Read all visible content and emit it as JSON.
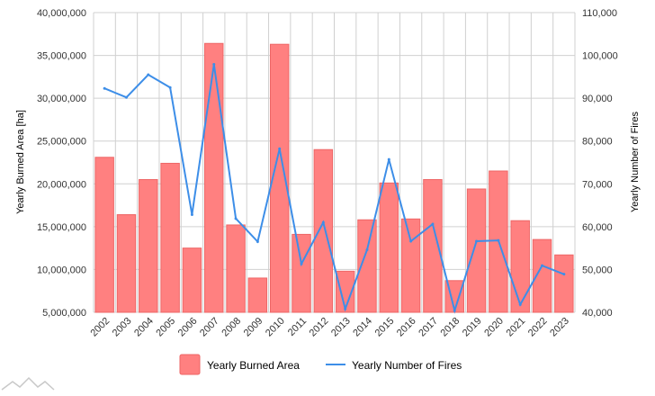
{
  "chart_data": {
    "type": "bar",
    "categories": [
      "2002",
      "2003",
      "2004",
      "2005",
      "2006",
      "2007",
      "2008",
      "2009",
      "2010",
      "2011",
      "2012",
      "2013",
      "2014",
      "2015",
      "2016",
      "2017",
      "2018",
      "2019",
      "2020",
      "2021",
      "2022",
      "2023"
    ],
    "series": [
      {
        "name": "Yearly Burned Area",
        "type": "bar",
        "axis": "left",
        "color": "#ff8080",
        "values": [
          23100000,
          16400000,
          20500000,
          22400000,
          12500000,
          36400000,
          15200000,
          9000000,
          36300000,
          14100000,
          24000000,
          9800000,
          15800000,
          20100000,
          15900000,
          20500000,
          8700000,
          19400000,
          21500000,
          15700000,
          13500000,
          11700000
        ]
      },
      {
        "name": "Yearly Number of Fires",
        "type": "line",
        "axis": "right",
        "color": "#3d8ee8",
        "values": [
          92300,
          90200,
          95500,
          92500,
          62800,
          97900,
          61900,
          56500,
          78200,
          51300,
          61000,
          40800,
          54600,
          75700,
          56600,
          60600,
          40400,
          56600,
          56800,
          41800,
          50900,
          48900
        ]
      }
    ],
    "ylabel": "Yearly Burned Area [ha]",
    "y2label": "Yearly Number of Fires",
    "ylim": [
      5000000,
      40000000
    ],
    "y2lim": [
      40000,
      110000
    ],
    "yticks": [
      "5,000,000",
      "10,000,000",
      "15,000,000",
      "20,000,000",
      "25,000,000",
      "30,000,000",
      "35,000,000",
      "40,000,000"
    ],
    "y2ticks": [
      "40,000",
      "50,000",
      "60,000",
      "70,000",
      "80,000",
      "90,000",
      "100,000",
      "110,000"
    ],
    "grid": true,
    "legend_position": "bottom"
  }
}
